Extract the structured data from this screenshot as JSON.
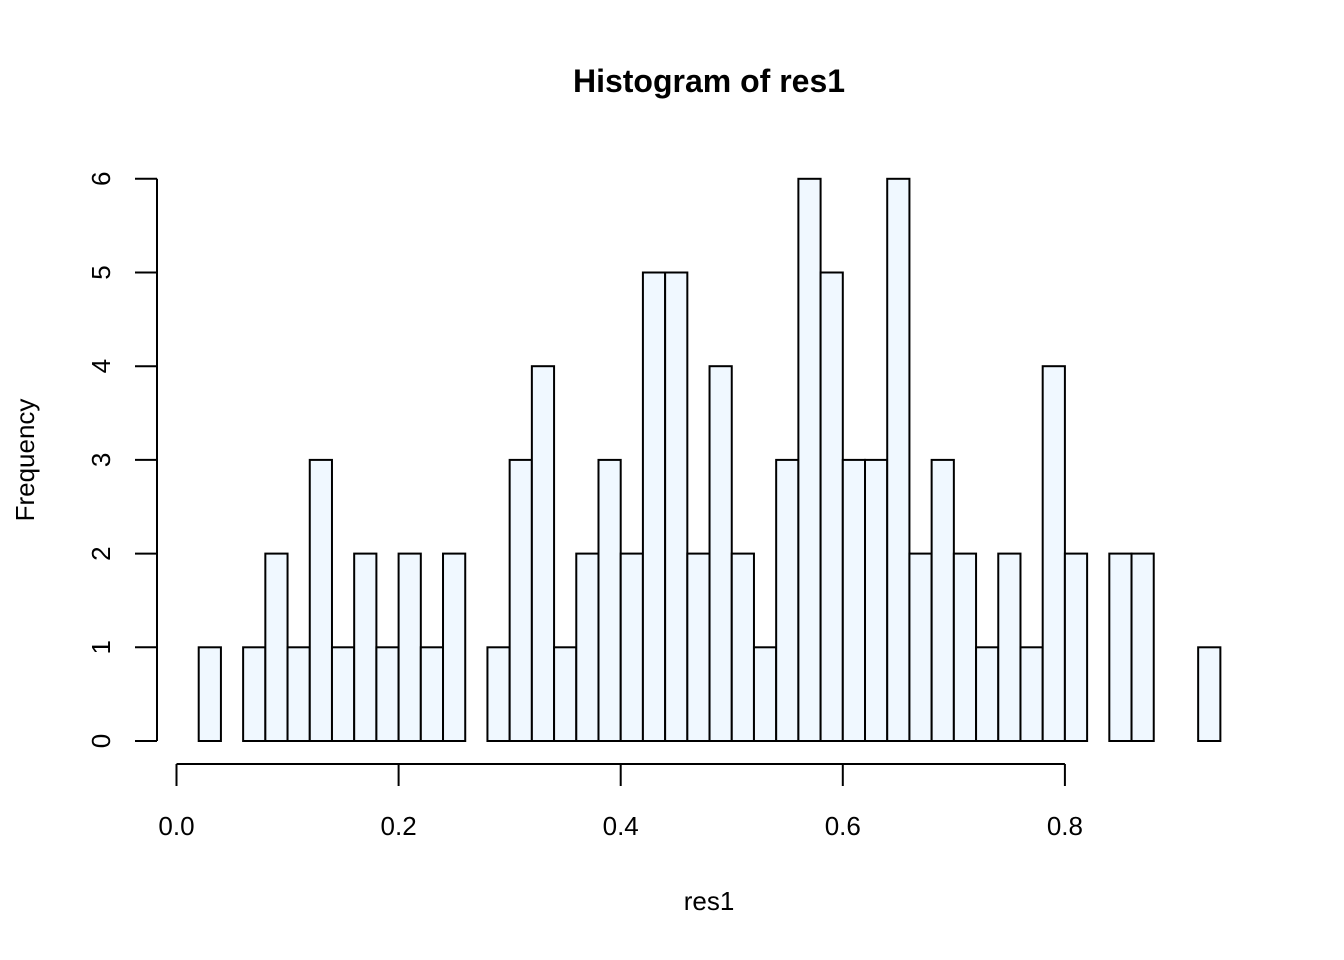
{
  "chart_data": {
    "type": "bar",
    "title": "Histogram of res1",
    "xlabel": "res1",
    "ylabel": "Frequency",
    "bar_color": "#f0f8ff",
    "bin_width": 0.02,
    "bins_start": [
      0.02,
      0.04,
      0.06,
      0.08,
      0.1,
      0.12,
      0.14,
      0.16,
      0.18,
      0.2,
      0.22,
      0.24,
      0.26,
      0.28,
      0.3,
      0.32,
      0.34,
      0.36,
      0.38,
      0.4,
      0.42,
      0.44,
      0.46,
      0.48,
      0.5,
      0.52,
      0.54,
      0.56,
      0.58,
      0.6,
      0.62,
      0.64,
      0.66,
      0.68,
      0.7,
      0.72,
      0.74,
      0.76,
      0.78,
      0.8,
      0.82,
      0.84,
      0.86,
      0.88,
      0.9,
      0.92
    ],
    "values": [
      1,
      0,
      1,
      2,
      1,
      3,
      1,
      2,
      1,
      2,
      1,
      2,
      0,
      1,
      3,
      4,
      1,
      2,
      3,
      2,
      5,
      5,
      2,
      4,
      2,
      1,
      3,
      6,
      5,
      3,
      3,
      6,
      2,
      3,
      2,
      1,
      2,
      1,
      4,
      2,
      0,
      2,
      2,
      0,
      0,
      1
    ],
    "xlim": [
      0.0,
      0.9
    ],
    "ylim": [
      0,
      6
    ],
    "x_ticks": [
      0.0,
      0.2,
      0.4,
      0.6,
      0.8
    ],
    "x_tick_labels": [
      "0.0",
      "0.2",
      "0.4",
      "0.6",
      "0.8"
    ],
    "y_ticks": [
      0,
      1,
      2,
      3,
      4,
      5,
      6
    ],
    "y_tick_labels": [
      "0",
      "1",
      "2",
      "3",
      "4",
      "5",
      "6"
    ],
    "grid": false,
    "legend": false
  }
}
